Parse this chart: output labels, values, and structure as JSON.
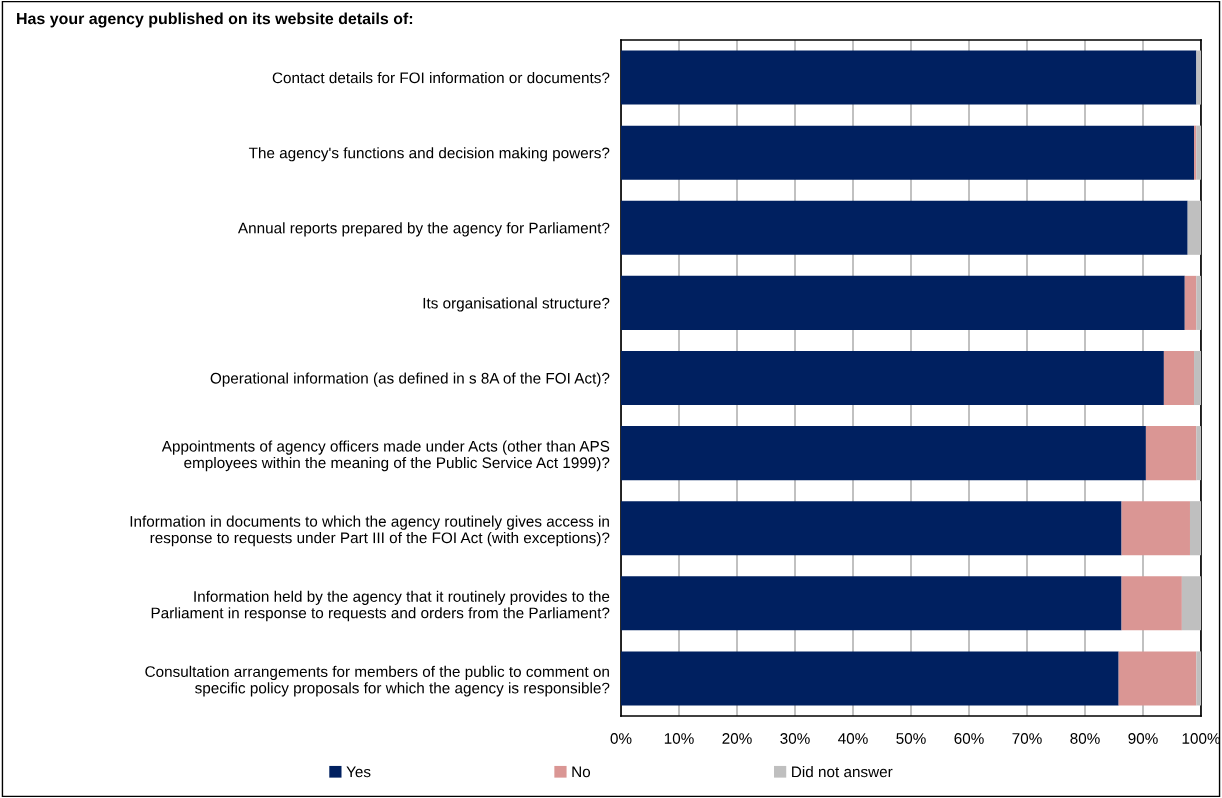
{
  "chart_data": {
    "type": "bar",
    "orientation": "horizontal",
    "stacked": true,
    "title": "Has your agency published on its website details of:",
    "categories": [
      "Contact details for FOI information or documents?",
      "The agency's functions and decision making powers?",
      "Annual reports prepared by the agency for Parliament?",
      "Its organisational structure?",
      "Operational information (as defined in s 8A of the FOI Act)?",
      "Appointments of agency officers made under Acts (other than APS\nemployees within the meaning of the Public Service Act 1999)?",
      "Information in documents to which the agency routinely gives access in\nresponse to requests under Part III of the FOI Act (with exceptions)?",
      "Information held by the agency that it routinely provides to the\nParliament in response to requests and orders from the Parliament?",
      "Consultation arrangements for members of the public to comment on\nspecific policy proposals for which the agency is responsible?"
    ],
    "series": [
      {
        "name": "Yes",
        "color": "#002060",
        "values": [
          99.2,
          98.8,
          97.7,
          97.2,
          93.6,
          90.5,
          86.3,
          86.3,
          85.8
        ]
      },
      {
        "name": "No",
        "color": "#da9694",
        "values": [
          null,
          0.4,
          null,
          2.0,
          5.2,
          8.7,
          11.8,
          10.4,
          13.4
        ]
      },
      {
        "name": "Did not answer",
        "color": "#bfbfbf",
        "values": [
          0.8,
          0.8,
          2.3,
          0.8,
          1.2,
          0.8,
          1.9,
          3.3,
          0.8
        ]
      }
    ],
    "xlim": [
      0,
      100
    ],
    "xticks": [
      {
        "value": 0,
        "label": "0%"
      },
      {
        "value": 10,
        "label": "10%"
      },
      {
        "value": 20,
        "label": "20%"
      },
      {
        "value": 30,
        "label": "30%"
      },
      {
        "value": 40,
        "label": "40%"
      },
      {
        "value": 50,
        "label": "50%"
      },
      {
        "value": 60,
        "label": "60%"
      },
      {
        "value": 70,
        "label": "70%"
      },
      {
        "value": 80,
        "label": "80%"
      },
      {
        "value": 90,
        "label": "90%"
      },
      {
        "value": 100,
        "label": "100%"
      }
    ],
    "grid": "x",
    "legend": "bottom"
  }
}
